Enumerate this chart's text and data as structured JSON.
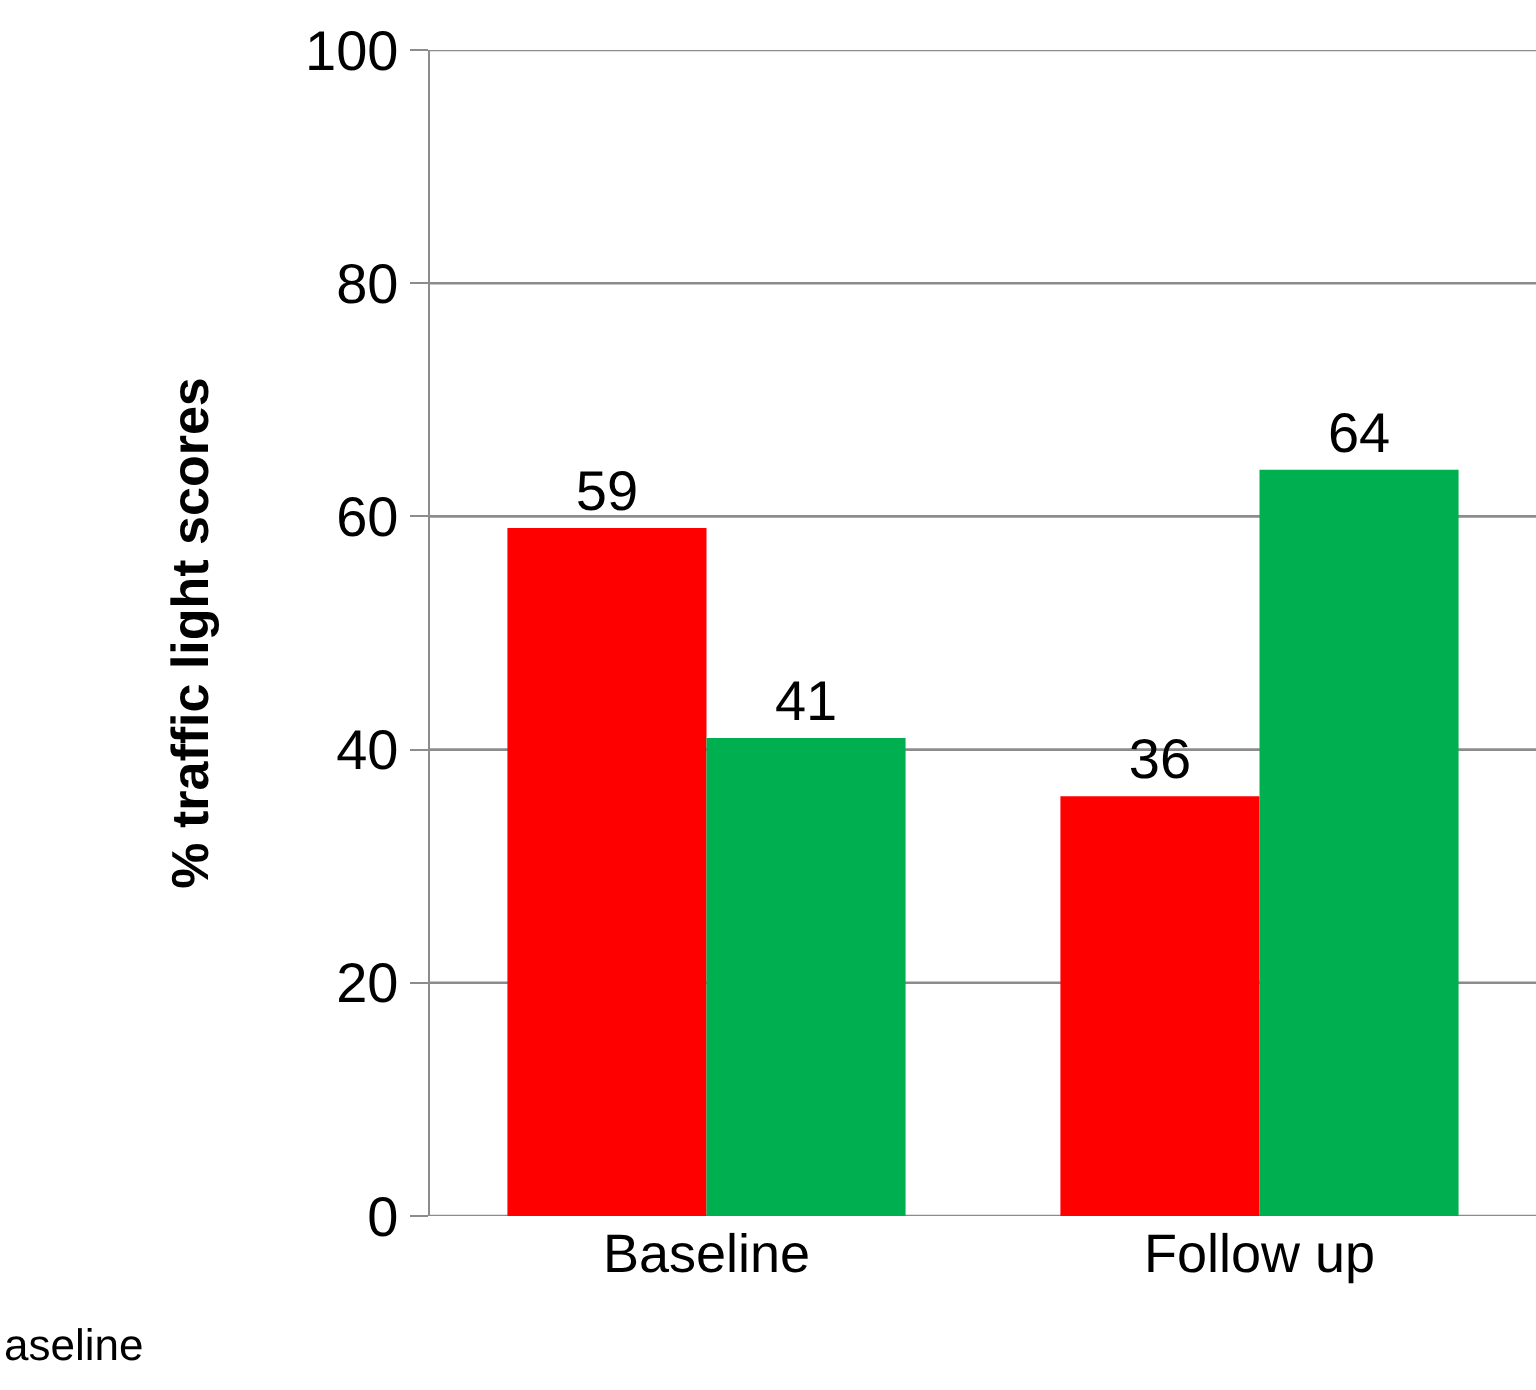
{
  "chart_data": {
    "type": "bar",
    "ylabel": "% traffic light scores",
    "categories": [
      "Baseline",
      "Follow up"
    ],
    "series": [
      {
        "color": "#ff0000",
        "values": [
          59,
          36
        ]
      },
      {
        "color": "#00b050",
        "values": [
          41,
          64
        ]
      }
    ],
    "ylim": [
      0,
      100
    ],
    "yticks": [
      0,
      20,
      40,
      60,
      80,
      100
    ],
    "grid": "y",
    "data_labels": true,
    "annotations": [
      "aseline"
    ]
  }
}
